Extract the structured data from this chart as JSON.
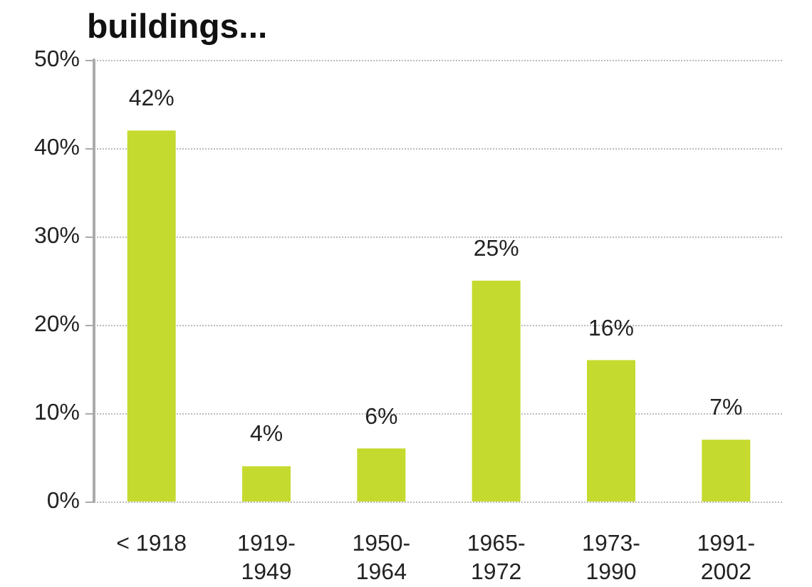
{
  "chart_data": {
    "type": "bar",
    "title": "buildings...",
    "categories": [
      "< 1918",
      "1919-1949",
      "1950-1964",
      "1965-1972",
      "1973-1990",
      "1991-2002"
    ],
    "values": [
      42,
      4,
      6,
      25,
      16,
      7
    ],
    "value_labels": [
      "42%",
      "4%",
      "6%",
      "25%",
      "16%",
      "7%"
    ],
    "color": "#c5da2e",
    "ylim": [
      0,
      50
    ],
    "yticks": [
      {
        "value": 0,
        "label": "0%"
      },
      {
        "value": 10,
        "label": "10%"
      },
      {
        "value": 20,
        "label": "20%"
      },
      {
        "value": 30,
        "label": "30%"
      },
      {
        "value": 40,
        "label": "40%"
      },
      {
        "value": 50,
        "label": "50%"
      }
    ],
    "grid": "y"
  }
}
